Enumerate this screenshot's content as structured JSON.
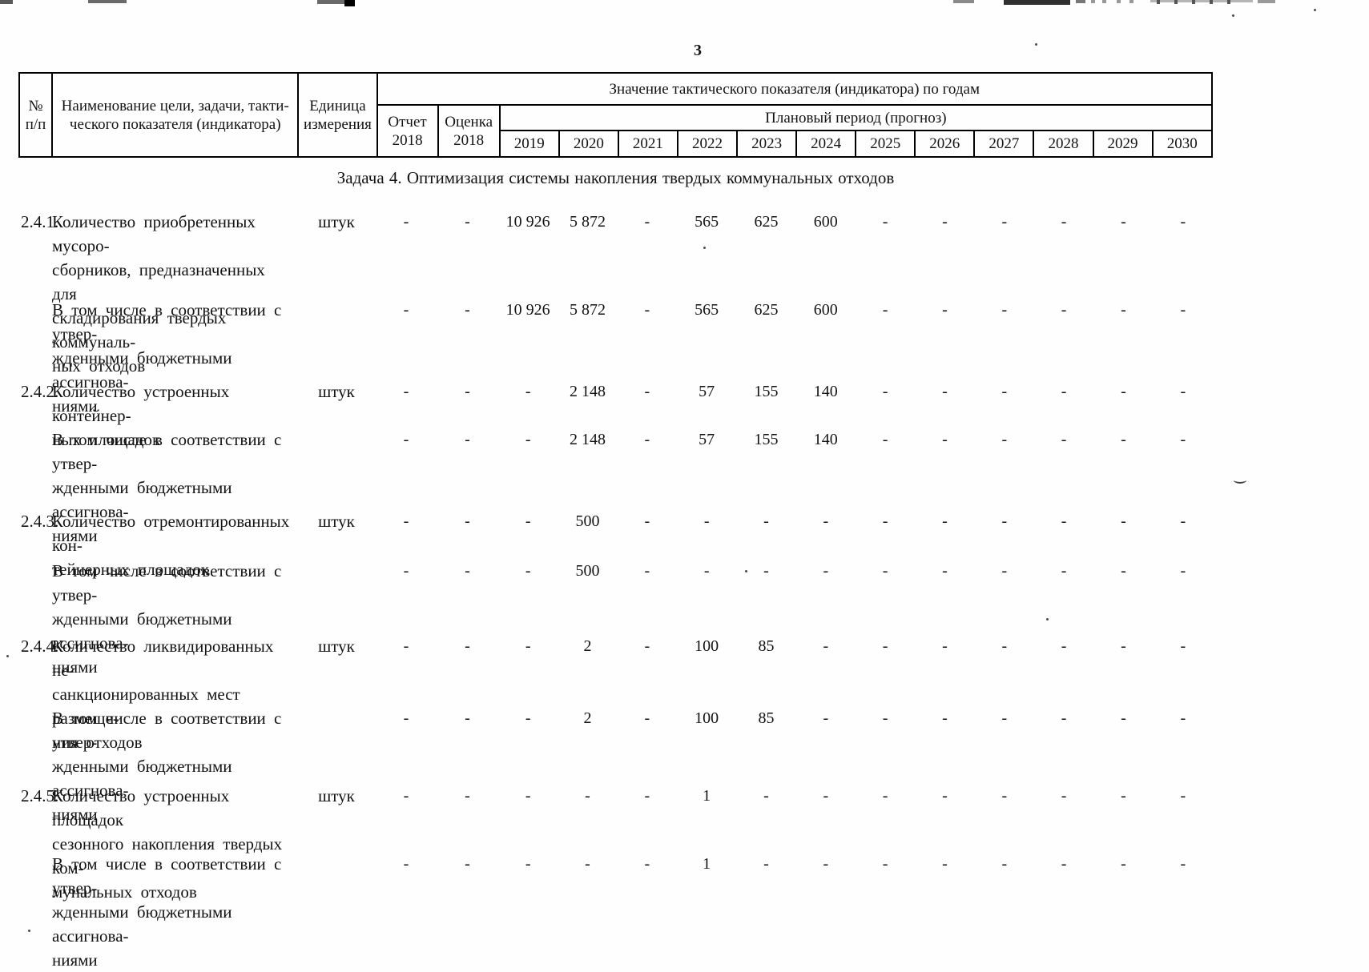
{
  "page": {
    "number": "3"
  },
  "table": {
    "header": {
      "num": "№\nп/п",
      "name": "Наименование цели, задачи, такти-\nческого показателя (индикатора)",
      "unit": "Единица\nизмерения",
      "values_title": "Значение тактического показателя (индикатора) по годам",
      "report": "Отчет\n2018",
      "estimate": "Оценка\n2018",
      "plan": "Плановый период (прогноз)",
      "years": [
        "2019",
        "2020",
        "2021",
        "2022",
        "2023",
        "2024",
        "2025",
        "2026",
        "2027",
        "2028",
        "2029",
        "2030"
      ]
    }
  },
  "body": {
    "task_title": "Задача 4. Оптимизация системы накопления твердых коммунальных отходов",
    "rows": [
      {
        "num": "2.4.1.",
        "name": "Количество приобретенных мусоро-\nсборников, предназначенных для\nскладирования твердых коммуналь-\nных отходов",
        "unit": "штук",
        "values": [
          "-",
          "-",
          "10 926",
          "5 872",
          "-",
          "565",
          "625",
          "600",
          "-",
          "-",
          "-",
          "-",
          "-",
          "-"
        ]
      },
      {
        "num": "",
        "name": "В том числе в соответствии с утвер-\nжденными бюджетными ассигнова-\nниями",
        "unit": "",
        "values": [
          "-",
          "-",
          "10 926",
          "5 872",
          "-",
          "565",
          "625",
          "600",
          "-",
          "-",
          "-",
          "-",
          "-",
          "-"
        ]
      },
      {
        "num": "2.4.2.",
        "name": "Количество устроенных контейнер-\nных площадок",
        "unit": "штук",
        "values": [
          "-",
          "-",
          "-",
          "2 148",
          "-",
          "57",
          "155",
          "140",
          "-",
          "-",
          "-",
          "-",
          "-",
          "-"
        ]
      },
      {
        "num": "",
        "name": "В том числе в соответствии с утвер-\nжденными бюджетными ассигнова-\nниями",
        "unit": "",
        "values": [
          "-",
          "-",
          "-",
          "2 148",
          "-",
          "57",
          "155",
          "140",
          "-",
          "-",
          "-",
          "-",
          "-",
          "-"
        ]
      },
      {
        "num": "2.4.3.",
        "name": "Количество отремонтированных кон-\nтейнерных площадок",
        "unit": "штук",
        "values": [
          "-",
          "-",
          "-",
          "500",
          "-",
          "-",
          "-",
          "-",
          "-",
          "-",
          "-",
          "-",
          "-",
          "-"
        ]
      },
      {
        "num": "",
        "name": "В том числе в соответствии с утвер-\nжденными бюджетными ассигнова-\nниями",
        "unit": "",
        "values": [
          "-",
          "-",
          "-",
          "500",
          "-",
          "-",
          "-",
          "-",
          "-",
          "-",
          "-",
          "-",
          "-",
          "-"
        ]
      },
      {
        "num": "2.4.4.",
        "name": "Количество ликвидированных не-\nсанкционированных мест размеще-\nния отходов",
        "unit": "штук",
        "values": [
          "-",
          "-",
          "-",
          "2",
          "-",
          "100",
          "85",
          "-",
          "-",
          "-",
          "-",
          "-",
          "-",
          "-"
        ]
      },
      {
        "num": "",
        "name": "В том числе в соответствии с утвер-\nжденными бюджетными ассигнова-\nниями",
        "unit": "",
        "values": [
          "-",
          "-",
          "-",
          "2",
          "-",
          "100",
          "85",
          "-",
          "-",
          "-",
          "-",
          "-",
          "-",
          "-"
        ]
      },
      {
        "num": "2.4.5.",
        "name": "Количество устроенных площадок\nсезонного накопления твердых ком-\nмунальных отходов",
        "unit": "штук",
        "values": [
          "-",
          "-",
          "-",
          "-",
          "-",
          "1",
          "-",
          "-",
          "-",
          "-",
          "-",
          "-",
          "-",
          "-"
        ]
      },
      {
        "num": "",
        "name": "В том числе в соответствии с утвер-\nжденными бюджетными ассигнова-\nниями",
        "unit": "",
        "values": [
          "-",
          "-",
          "-",
          "-",
          "-",
          "1",
          "-",
          "-",
          "-",
          "-",
          "-",
          "-",
          "-",
          "-"
        ]
      }
    ]
  }
}
